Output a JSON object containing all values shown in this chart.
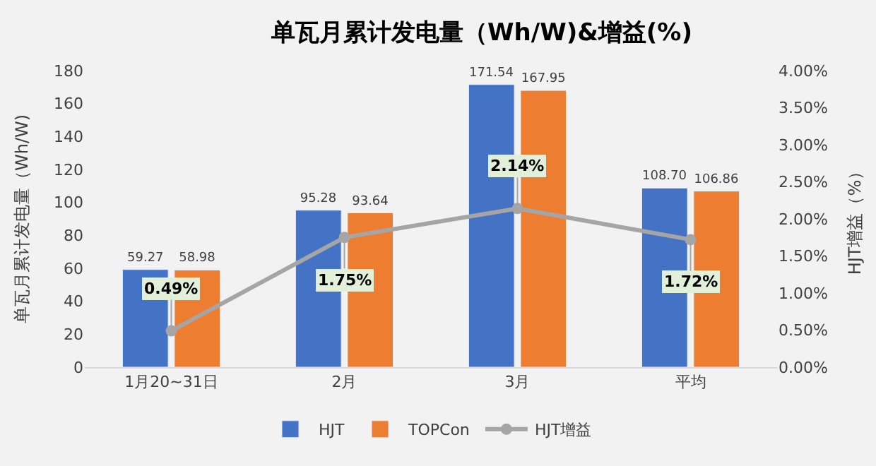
{
  "chart_data": {
    "type": "bar",
    "title": "单瓦月累计发电量（Wh/W)&增益(%)",
    "ylabel": "单瓦月累计发电量（Wh/W)",
    "y2label": "HJT增益（%）",
    "categories": [
      "1月20~31日",
      "2月",
      "3月",
      "平均"
    ],
    "series": [
      {
        "name": "HJT",
        "color": "#4472c4",
        "values": [
          59.27,
          95.28,
          171.54,
          108.7
        ],
        "value_labels": [
          "59.27",
          "95.28",
          "171.54",
          "108.70"
        ]
      },
      {
        "name": "TOPCon",
        "color": "#ed7d31",
        "values": [
          58.98,
          93.64,
          167.95,
          106.86
        ],
        "value_labels": [
          "58.98",
          "93.64",
          "167.95",
          "106.86"
        ]
      },
      {
        "name": "HJT增益",
        "type": "line",
        "axis": "y2",
        "color": "#a5a5a5",
        "marker": "circle",
        "values": [
          0.49,
          1.75,
          2.14,
          1.72
        ],
        "value_labels": [
          "0.49%",
          "1.75%",
          "2.14%",
          "1.72%"
        ]
      }
    ],
    "ylim": [
      0,
      180
    ],
    "yticks": [
      0,
      20,
      40,
      60,
      80,
      100,
      120,
      140,
      160,
      180
    ],
    "y2lim": [
      0,
      4
    ],
    "y2ticks": [
      {
        "value": 0,
        "label": "0.00%"
      },
      {
        "value": 0.5,
        "label": "0.50%"
      },
      {
        "value": 1,
        "label": "1.00%"
      },
      {
        "value": 1.5,
        "label": "1.50%"
      },
      {
        "value": 2,
        "label": "2.00%"
      },
      {
        "value": 2.5,
        "label": "2.50%"
      },
      {
        "value": 3,
        "label": "3.00%"
      },
      {
        "value": 3.5,
        "label": "3.50%"
      },
      {
        "value": 4,
        "label": "4.00%"
      }
    ],
    "grid": false,
    "legend": "bottom"
  }
}
